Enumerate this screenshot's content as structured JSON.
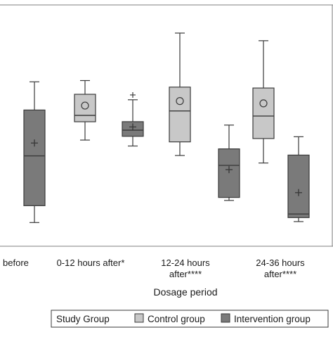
{
  "chart_data": {
    "type": "box",
    "title": "",
    "xlabel": "Dosage period",
    "ylabel": "",
    "categories": [
      [
        "...s before"
      ],
      [
        "0-12 hours after*"
      ],
      [
        "12-24 hours",
        "after****"
      ],
      [
        "24-36 hours",
        "after****"
      ]
    ],
    "legend": {
      "title": "Study Group",
      "placement": "bottom",
      "entries": [
        "Control group",
        "Intervention group"
      ]
    },
    "series": [
      {
        "name": "Control group",
        "color": "#c8c8c8",
        "mean_marker": "circle",
        "boxes": [
          null,
          {
            "whisker_low": 0.4683,
            "q1": 0.5593,
            "median": 0.5909,
            "q3": 0.6957,
            "whisker_high": 0.764,
            "mean": 0.6396,
            "outliers": []
          },
          {
            "whisker_low": 0.3916,
            "q1": 0.4593,
            "median": 0.613,
            "q3": 0.7314,
            "whisker_high": 1.0,
            "mean": 0.6622,
            "outliers": []
          },
          {
            "whisker_low": 0.3542,
            "q1": 0.4758,
            "median": 0.5877,
            "q3": 0.7269,
            "whisker_high": 0.962,
            "mean": 0.6507,
            "outliers": []
          }
        ]
      },
      {
        "name": "Intervention group",
        "color": "#7a7a7a",
        "mean_marker": "plus",
        "boxes": [
          {
            "whisker_low": 0.0583,
            "q1": 0.1421,
            "median": 0.3897,
            "q3": 0.6176,
            "whisker_high": 0.7577,
            "mean": 0.4535,
            "outliers": []
          },
          {
            "whisker_low": 0.4387,
            "q1": 0.4869,
            "median": 0.5175,
            "q3": 0.5597,
            "whisker_high": 0.6685,
            "mean": 0.5336,
            "outliers": [
              0.6925
            ]
          },
          {
            "whisker_low": 0.1682,
            "q1": 0.1831,
            "median": 0.3426,
            "q3": 0.4245,
            "whisker_high": 0.5427,
            "mean": 0.3211,
            "outliers": []
          },
          {
            "whisker_low": 0.0631,
            "q1": 0.0829,
            "median": 0.1006,
            "q3": 0.3936,
            "whisker_high": 0.4848,
            "mean": 0.207,
            "outliers": []
          }
        ]
      }
    ]
  }
}
